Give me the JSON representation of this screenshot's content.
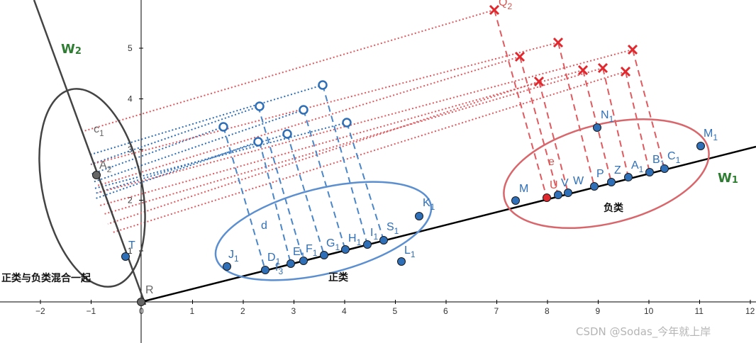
{
  "axes": {
    "x_ticks": [
      "−2",
      "−1",
      "0",
      "1",
      "2",
      "3",
      "4",
      "5",
      "6",
      "7",
      "8",
      "9",
      "10",
      "11",
      "12"
    ],
    "y_ticks": [
      "1",
      "2",
      "3",
      "4",
      "5"
    ]
  },
  "lines": {
    "w1_label": "W",
    "w1_sub": "1",
    "w2_label": "W",
    "w2_sub": "2"
  },
  "regions": {
    "positive_label": "正类",
    "negative_label": "负类",
    "mixed_label": "正类与负类混合一起"
  },
  "points": {
    "origin": "R",
    "c1": {
      "t": "c",
      "s": "1"
    },
    "a2": {
      "t": "A",
      "s": "2"
    },
    "t": {
      "t": "T",
      "s": ""
    },
    "j1": {
      "t": "J",
      "s": "1"
    },
    "d1": {
      "t": "D",
      "s": "1"
    },
    "f3": {
      "t": "f",
      "s": "3"
    },
    "e1": {
      "t": "E",
      "s": "1"
    },
    "f1": {
      "t": "F",
      "s": "1"
    },
    "g1": {
      "t": "G",
      "s": "1"
    },
    "h1": {
      "t": "H",
      "s": "1"
    },
    "i1": {
      "t": "I",
      "s": "1"
    },
    "s1": {
      "t": "S",
      "s": "1"
    },
    "k1": {
      "t": "K",
      "s": "1"
    },
    "l1": {
      "t": "L",
      "s": "1"
    },
    "d": {
      "t": "d",
      "s": ""
    },
    "m": {
      "t": "M",
      "s": ""
    },
    "u": {
      "t": "U",
      "s": ""
    },
    "v": {
      "t": "V",
      "s": ""
    },
    "w": {
      "t": "W",
      "s": ""
    },
    "p": {
      "t": "P",
      "s": ""
    },
    "z": {
      "t": "Z",
      "s": ""
    },
    "a1": {
      "t": "A",
      "s": "1"
    },
    "b1": {
      "t": "B",
      "s": "1"
    },
    "c1b": {
      "t": "C",
      "s": "1"
    },
    "n1": {
      "t": "N",
      "s": "1"
    },
    "m1": {
      "t": "M",
      "s": "1"
    },
    "e": {
      "t": "e",
      "s": ""
    },
    "q2": {
      "t": "Q",
      "s": "2"
    }
  },
  "watermark": "CSDN @Sodas_今年就上岸",
  "colors": {
    "blue": "#2f6fb8",
    "red": "#e0292f",
    "ellipse_blue": "#5b8fd0",
    "ellipse_red": "#d9666b",
    "axis": "#000000",
    "w2_line": "#444444",
    "label_green": "#2e7d32"
  }
}
